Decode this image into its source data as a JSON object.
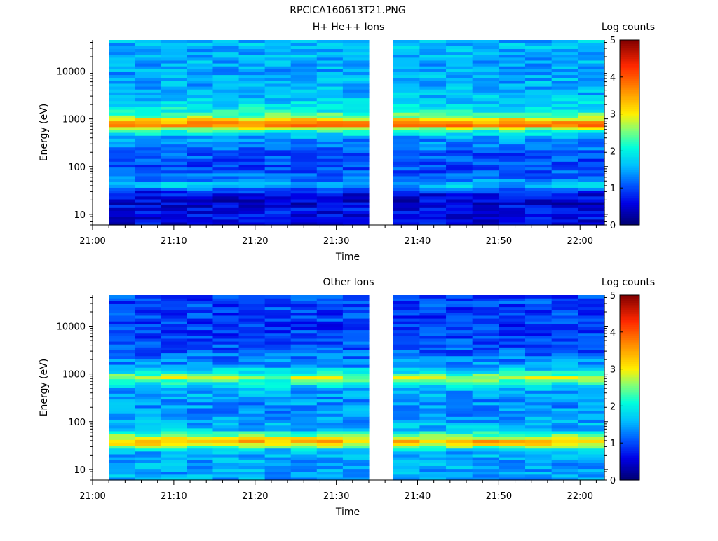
{
  "figure_title": "RPCICA160613T21.PNG",
  "chart_data": [
    {
      "type": "heatmap",
      "title": "H+ He++ Ions",
      "xlabel": "Time",
      "ylabel": "Energy (eV)",
      "x_ticks": [
        "21:00",
        "21:10",
        "21:20",
        "21:30",
        "21:40",
        "21:50",
        "22:00"
      ],
      "x_range": [
        "21:00",
        "22:03"
      ],
      "data_start": "21:02",
      "data_gap": [
        "21:34",
        "21:37"
      ],
      "y_scale": "log",
      "y_range": [
        6,
        45000
      ],
      "y_ticks": [
        "10",
        "100",
        "1000",
        "10000"
      ],
      "colorbar": {
        "label": "Log counts",
        "range": [
          0,
          5
        ],
        "ticks": [
          "0",
          "1",
          "2",
          "3",
          "4",
          "5"
        ]
      },
      "energy_profile": [
        {
          "energy_eV": 8,
          "log_counts": 0.6
        },
        {
          "energy_eV": 12,
          "log_counts": 0.7
        },
        {
          "energy_eV": 18,
          "log_counts": 0.5
        },
        {
          "energy_eV": 25,
          "log_counts": 0.6
        },
        {
          "energy_eV": 32,
          "log_counts": 0.9
        },
        {
          "energy_eV": 42,
          "log_counts": 1.8
        },
        {
          "energy_eV": 55,
          "log_counts": 1.2
        },
        {
          "energy_eV": 100,
          "log_counts": 1.0
        },
        {
          "energy_eV": 200,
          "log_counts": 1.1
        },
        {
          "energy_eV": 400,
          "log_counts": 1.4
        },
        {
          "energy_eV": 600,
          "log_counts": 2.3
        },
        {
          "energy_eV": 750,
          "log_counts": 3.8
        },
        {
          "energy_eV": 900,
          "log_counts": 3.4
        },
        {
          "energy_eV": 1100,
          "log_counts": 2.6
        },
        {
          "energy_eV": 1500,
          "log_counts": 2.0
        },
        {
          "energy_eV": 3000,
          "log_counts": 1.6
        },
        {
          "energy_eV": 10000,
          "log_counts": 1.5
        },
        {
          "energy_eV": 40000,
          "log_counts": 1.6
        }
      ]
    },
    {
      "type": "heatmap",
      "title": "Other Ions",
      "xlabel": "Time",
      "ylabel": "Energy (eV)",
      "x_ticks": [
        "21:00",
        "21:10",
        "21:20",
        "21:30",
        "21:40",
        "21:50",
        "22:00"
      ],
      "x_range": [
        "21:00",
        "22:03"
      ],
      "data_start": "21:02",
      "data_gap": [
        "21:34",
        "21:37"
      ],
      "y_scale": "log",
      "y_range": [
        6,
        45000
      ],
      "y_ticks": [
        "10",
        "100",
        "1000",
        "10000"
      ],
      "colorbar": {
        "label": "Log counts",
        "range": [
          0,
          5
        ],
        "ticks": [
          "0",
          "1",
          "2",
          "3",
          "4",
          "5"
        ]
      },
      "energy_profile": [
        {
          "energy_eV": 8,
          "log_counts": 1.5
        },
        {
          "energy_eV": 15,
          "log_counts": 1.5
        },
        {
          "energy_eV": 25,
          "log_counts": 1.6
        },
        {
          "energy_eV": 32,
          "log_counts": 2.8
        },
        {
          "energy_eV": 40,
          "log_counts": 3.4
        },
        {
          "energy_eV": 50,
          "log_counts": 2.6
        },
        {
          "energy_eV": 70,
          "log_counts": 1.6
        },
        {
          "energy_eV": 150,
          "log_counts": 1.4
        },
        {
          "energy_eV": 300,
          "log_counts": 1.4
        },
        {
          "energy_eV": 500,
          "log_counts": 1.6
        },
        {
          "energy_eV": 700,
          "log_counts": 2.2
        },
        {
          "energy_eV": 850,
          "log_counts": 2.7
        },
        {
          "energy_eV": 1100,
          "log_counts": 2.0
        },
        {
          "energy_eV": 1500,
          "log_counts": 1.4
        },
        {
          "energy_eV": 3000,
          "log_counts": 1.1
        },
        {
          "energy_eV": 10000,
          "log_counts": 0.9
        },
        {
          "energy_eV": 40000,
          "log_counts": 1.0
        }
      ]
    }
  ]
}
